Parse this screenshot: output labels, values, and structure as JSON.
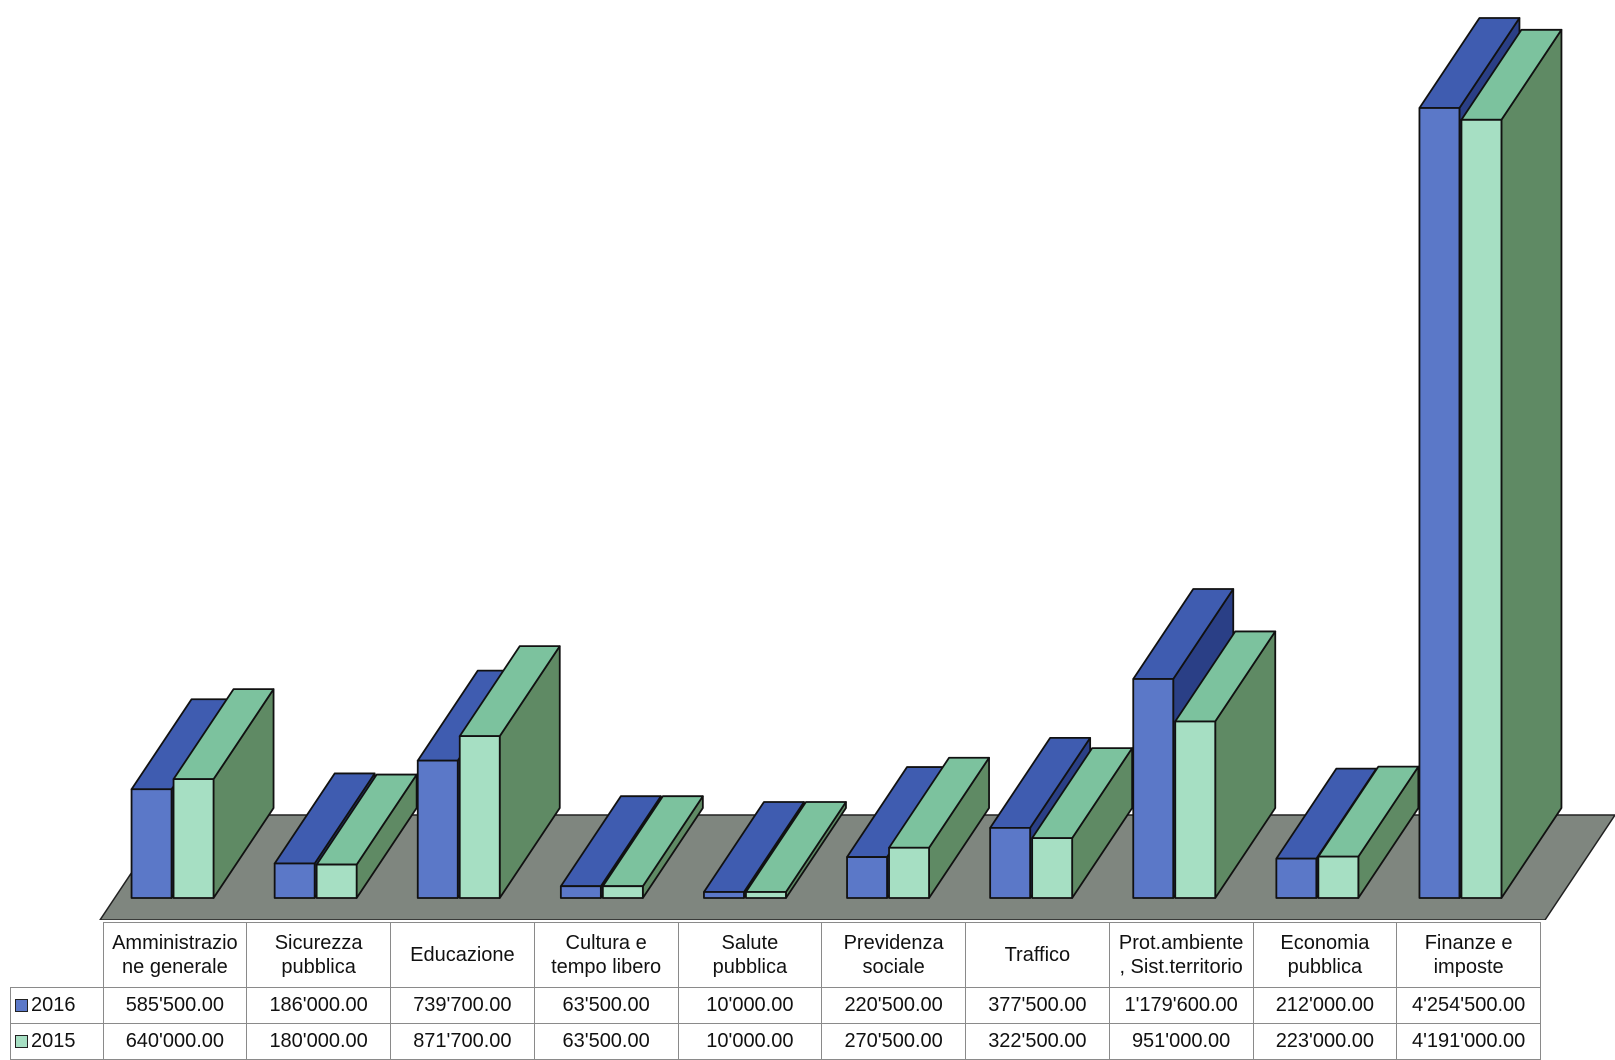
{
  "chart_data": {
    "type": "bar",
    "categories": [
      "Amministrazione generale",
      "Sicurezza pubblica",
      "Educazione",
      "Cultura e tempo libero",
      "Salute pubblica",
      "Previdenza sociale",
      "Traffico",
      "Prot.ambiente, Sist.territorio",
      "Economia pubblica",
      "Finanze e imposte"
    ],
    "category_labels": [
      [
        "Amministrazio",
        "ne generale"
      ],
      [
        "Sicurezza",
        "pubblica"
      ],
      [
        "Educazione"
      ],
      [
        "Cultura e",
        "tempo libero"
      ],
      [
        "Salute",
        "pubblica"
      ],
      [
        "Previdenza",
        "sociale"
      ],
      [
        "Traffico"
      ],
      [
        "Prot.ambiente",
        ", Sist.territorio"
      ],
      [
        "Economia",
        "pubblica"
      ],
      [
        "Finanze e",
        "imposte"
      ]
    ],
    "series": [
      {
        "name": "2016",
        "color": "#5b78c8",
        "values": [
          585500,
          186000,
          739700,
          63500,
          10000,
          220500,
          377500,
          1179600,
          212000,
          4254500
        ],
        "labels": [
          "585'500.00",
          "186'000.00",
          "739'700.00",
          "63'500.00",
          "10'000.00",
          "220'500.00",
          "377'500.00",
          "1'179'600.00",
          "212'000.00",
          "4'254'500.00"
        ]
      },
      {
        "name": "2015",
        "color": "#a6dfc3",
        "values": [
          640000,
          180000,
          871700,
          63500,
          10000,
          270500,
          322500,
          951000,
          223000,
          4191000
        ],
        "labels": [
          "640'000.00",
          "180'000.00",
          "871'700.00",
          "63'500.00",
          "10'000.00",
          "270'500.00",
          "322'500.00",
          "951'000.00",
          "223'000.00",
          "4'191'000.00"
        ]
      }
    ],
    "ylim": [
      0,
      4254500
    ],
    "grid": false,
    "legend": "table-left",
    "data_table": true,
    "style": "3d-column"
  }
}
